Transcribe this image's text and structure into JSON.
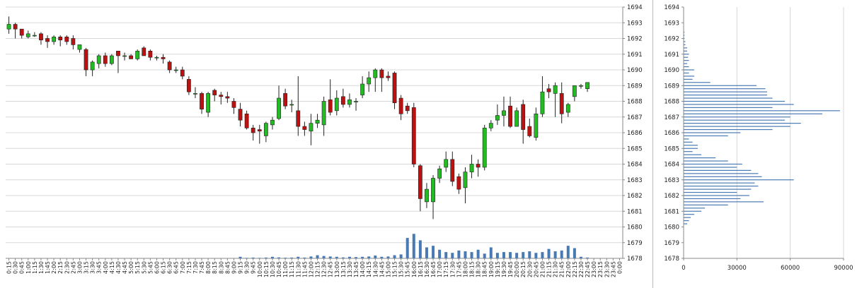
{
  "chart_data": [
    {
      "type": "candlestick",
      "y_axis": {
        "position": "right",
        "min": 1678,
        "max": 1694,
        "ticks": [
          1678,
          1679,
          1680,
          1681,
          1682,
          1683,
          1684,
          1685,
          1686,
          1687,
          1688,
          1689,
          1690,
          1691,
          1692,
          1693,
          1694
        ]
      },
      "x_tick_labels": [
        "0:15",
        "0:30",
        "0:45",
        "1:00",
        "1:15",
        "1:30",
        "1:45",
        "2:00",
        "2:15",
        "2:30",
        "2:45",
        "3:00",
        "3:15",
        "3:30",
        "3:45",
        "4:00",
        "4:15",
        "4:30",
        "4:45",
        "5:00",
        "5:15",
        "5:30",
        "5:45",
        "6:00",
        "6:15",
        "6:30",
        "6:45",
        "7:00",
        "7:15",
        "7:30",
        "7:45",
        "8:00",
        "8:15",
        "8:30",
        "8:45",
        "9:00",
        "9:15",
        "9:30",
        "9:45",
        "10:00",
        "10:15",
        "10:30",
        "10:45",
        "11:00",
        "11:15",
        "11:30",
        "11:45",
        "12:00",
        "12:15",
        "12:30",
        "12:45",
        "13:00",
        "13:15",
        "13:30",
        "13:45",
        "14:00",
        "14:15",
        "14:30",
        "14:45",
        "15:00",
        "15:15",
        "15:30",
        "15:45",
        "16:00",
        "16:15",
        "16:30",
        "16:45",
        "17:00",
        "17:15",
        "17:30",
        "17:45",
        "18:00",
        "18:15",
        "18:30",
        "18:45",
        "19:00",
        "19:15",
        "19:30",
        "19:45",
        "20:00",
        "20:15",
        "20:30",
        "20:45",
        "21:00",
        "21:15",
        "21:30",
        "21:45",
        "22:00",
        "22:15",
        "22:30",
        "22:45",
        "23:00",
        "23:15",
        "23:30",
        "23:45",
        "0:00"
      ],
      "colors": {
        "up": "#22bb22",
        "down": "#bb1111",
        "volume": "#4a7ab3",
        "grid": "#d8d8d8"
      },
      "candles": [
        {
          "t": "0:15",
          "o": 1692.6,
          "h": 1693.4,
          "l": 1692.3,
          "c": 1692.9
        },
        {
          "t": "0:30",
          "o": 1692.9,
          "h": 1693.0,
          "l": 1692.0,
          "c": 1692.6
        },
        {
          "t": "0:45",
          "o": 1692.6,
          "h": 1692.6,
          "l": 1692.0,
          "c": 1692.2
        },
        {
          "t": "1:00",
          "o": 1692.1,
          "h": 1692.5,
          "l": 1692.0,
          "c": 1692.3
        },
        {
          "t": "1:15",
          "o": 1692.2,
          "h": 1692.4,
          "l": 1692.1,
          "c": 1692.2
        },
        {
          "t": "1:30",
          "o": 1692.3,
          "h": 1692.4,
          "l": 1691.6,
          "c": 1691.9
        },
        {
          "t": "1:45",
          "o": 1692.0,
          "h": 1692.2,
          "l": 1691.4,
          "c": 1691.8
        },
        {
          "t": "2:00",
          "o": 1691.8,
          "h": 1692.2,
          "l": 1691.6,
          "c": 1692.1
        },
        {
          "t": "2:15",
          "o": 1692.1,
          "h": 1692.2,
          "l": 1691.5,
          "c": 1691.9
        },
        {
          "t": "2:30",
          "o": 1692.1,
          "h": 1692.2,
          "l": 1691.6,
          "c": 1691.8
        },
        {
          "t": "2:45",
          "o": 1692.0,
          "h": 1692.2,
          "l": 1691.3,
          "c": 1691.6
        },
        {
          "t": "3:00",
          "o": 1691.3,
          "h": 1691.5,
          "l": 1691.1,
          "c": 1691.6
        },
        {
          "t": "3:15",
          "o": 1691.3,
          "h": 1691.4,
          "l": 1689.6,
          "c": 1690.0
        },
        {
          "t": "3:30",
          "o": 1690.0,
          "h": 1690.6,
          "l": 1689.6,
          "c": 1690.5
        },
        {
          "t": "3:45",
          "o": 1690.4,
          "h": 1691.0,
          "l": 1690.1,
          "c": 1690.9
        },
        {
          "t": "4:00",
          "o": 1690.9,
          "h": 1691.1,
          "l": 1690.2,
          "c": 1690.4
        },
        {
          "t": "4:15",
          "o": 1690.4,
          "h": 1691.0,
          "l": 1690.3,
          "c": 1690.9
        },
        {
          "t": "4:30",
          "o": 1691.2,
          "h": 1691.2,
          "l": 1689.8,
          "c": 1690.9
        },
        {
          "t": "4:45",
          "o": 1690.9,
          "h": 1691.1,
          "l": 1690.6,
          "c": 1690.9
        },
        {
          "t": "5:00",
          "o": 1690.9,
          "h": 1691.0,
          "l": 1690.7,
          "c": 1690.7
        },
        {
          "t": "5:15",
          "o": 1690.7,
          "h": 1691.3,
          "l": 1690.6,
          "c": 1691.2
        },
        {
          "t": "5:30",
          "o": 1691.4,
          "h": 1691.5,
          "l": 1690.9,
          "c": 1690.9
        },
        {
          "t": "5:45",
          "o": 1691.2,
          "h": 1691.3,
          "l": 1690.6,
          "c": 1690.8
        },
        {
          "t": "6:00",
          "o": 1690.8,
          "h": 1690.9,
          "l": 1690.6,
          "c": 1690.8
        },
        {
          "t": "6:15",
          "o": 1690.8,
          "h": 1691.0,
          "l": 1690.4,
          "c": 1690.7
        },
        {
          "t": "6:30",
          "o": 1690.5,
          "h": 1690.6,
          "l": 1689.8,
          "c": 1690.0
        },
        {
          "t": "6:45",
          "o": 1690.0,
          "h": 1690.2,
          "l": 1689.8,
          "c": 1690.0
        },
        {
          "t": "7:00",
          "o": 1690.0,
          "h": 1690.2,
          "l": 1689.4,
          "c": 1689.6
        },
        {
          "t": "7:15",
          "o": 1689.4,
          "h": 1689.6,
          "l": 1688.4,
          "c": 1688.6
        },
        {
          "t": "7:30",
          "o": 1688.5,
          "h": 1688.9,
          "l": 1688.2,
          "c": 1688.5
        },
        {
          "t": "7:45",
          "o": 1688.5,
          "h": 1688.6,
          "l": 1687.2,
          "c": 1687.5
        },
        {
          "t": "8:00",
          "o": 1687.3,
          "h": 1688.6,
          "l": 1687.0,
          "c": 1688.5
        },
        {
          "t": "8:15",
          "o": 1688.7,
          "h": 1688.8,
          "l": 1688.0,
          "c": 1688.4
        },
        {
          "t": "8:30",
          "o": 1688.4,
          "h": 1688.6,
          "l": 1687.8,
          "c": 1688.3
        },
        {
          "t": "8:45",
          "o": 1688.3,
          "h": 1688.6,
          "l": 1687.9,
          "c": 1688.2
        },
        {
          "t": "9:00",
          "o": 1688.0,
          "h": 1688.2,
          "l": 1687.2,
          "c": 1687.6
        },
        {
          "t": "9:15",
          "o": 1687.5,
          "h": 1687.9,
          "l": 1686.4,
          "c": 1686.8
        },
        {
          "t": "9:30",
          "o": 1687.2,
          "h": 1687.4,
          "l": 1686.2,
          "c": 1686.3
        },
        {
          "t": "9:45",
          "o": 1686.3,
          "h": 1686.5,
          "l": 1685.5,
          "c": 1686.0
        },
        {
          "t": "10:00",
          "o": 1686.2,
          "h": 1686.5,
          "l": 1685.3,
          "c": 1686.1
        },
        {
          "t": "10:15",
          "o": 1685.8,
          "h": 1686.7,
          "l": 1685.4,
          "c": 1686.6
        },
        {
          "t": "10:30",
          "o": 1686.5,
          "h": 1687.0,
          "l": 1686.2,
          "c": 1686.8
        },
        {
          "t": "10:45",
          "o": 1686.9,
          "h": 1689.0,
          "l": 1686.8,
          "c": 1688.2
        },
        {
          "t": "11:00",
          "o": 1688.5,
          "h": 1688.8,
          "l": 1687.5,
          "c": 1687.7
        },
        {
          "t": "11:15",
          "o": 1687.8,
          "h": 1688.1,
          "l": 1687.3,
          "c": 1687.8
        },
        {
          "t": "11:30",
          "o": 1687.4,
          "h": 1689.6,
          "l": 1685.8,
          "c": 1686.4
        },
        {
          "t": "11:45",
          "o": 1686.4,
          "h": 1686.7,
          "l": 1685.8,
          "c": 1686.2
        },
        {
          "t": "12:00",
          "o": 1686.1,
          "h": 1687.2,
          "l": 1685.2,
          "c": 1686.6
        },
        {
          "t": "12:15",
          "o": 1686.6,
          "h": 1687.2,
          "l": 1686.3,
          "c": 1686.8
        },
        {
          "t": "12:30",
          "o": 1686.5,
          "h": 1688.3,
          "l": 1685.8,
          "c": 1688.0
        },
        {
          "t": "12:45",
          "o": 1688.1,
          "h": 1689.4,
          "l": 1687.1,
          "c": 1687.3
        },
        {
          "t": "13:00",
          "o": 1687.4,
          "h": 1688.7,
          "l": 1687.1,
          "c": 1688.2
        },
        {
          "t": "13:15",
          "o": 1688.3,
          "h": 1688.8,
          "l": 1687.6,
          "c": 1687.8
        },
        {
          "t": "13:30",
          "o": 1687.8,
          "h": 1688.5,
          "l": 1687.6,
          "c": 1688.1
        },
        {
          "t": "13:45",
          "o": 1688.0,
          "h": 1688.2,
          "l": 1687.4,
          "c": 1688.0
        },
        {
          "t": "14:00",
          "o": 1688.4,
          "h": 1689.6,
          "l": 1688.2,
          "c": 1689.1
        },
        {
          "t": "14:15",
          "o": 1689.1,
          "h": 1689.9,
          "l": 1688.6,
          "c": 1689.5
        },
        {
          "t": "14:30",
          "o": 1689.5,
          "h": 1690.1,
          "l": 1688.6,
          "c": 1690.0
        },
        {
          "t": "14:45",
          "o": 1690.0,
          "h": 1690.1,
          "l": 1688.6,
          "c": 1689.5
        },
        {
          "t": "15:00",
          "o": 1689.6,
          "h": 1689.9,
          "l": 1689.3,
          "c": 1689.5
        },
        {
          "t": "15:15",
          "o": 1689.8,
          "h": 1689.9,
          "l": 1687.5,
          "c": 1687.9
        },
        {
          "t": "15:30",
          "o": 1688.2,
          "h": 1688.4,
          "l": 1686.8,
          "c": 1687.2
        },
        {
          "t": "15:45",
          "o": 1687.7,
          "h": 1687.9,
          "l": 1687.2,
          "c": 1687.4
        },
        {
          "t": "16:00",
          "o": 1687.6,
          "h": 1687.9,
          "l": 1683.8,
          "c": 1684.0
        },
        {
          "t": "16:15",
          "o": 1683.9,
          "h": 1684.0,
          "l": 1681.0,
          "c": 1681.8
        },
        {
          "t": "16:30",
          "o": 1681.6,
          "h": 1682.8,
          "l": 1681.2,
          "c": 1682.4
        },
        {
          "t": "16:45",
          "o": 1681.6,
          "h": 1683.3,
          "l": 1680.5,
          "c": 1683.1
        },
        {
          "t": "17:00",
          "o": 1683.1,
          "h": 1683.9,
          "l": 1682.8,
          "c": 1683.7
        },
        {
          "t": "17:15",
          "o": 1683.8,
          "h": 1684.8,
          "l": 1683.5,
          "c": 1684.3
        },
        {
          "t": "17:30",
          "o": 1684.3,
          "h": 1684.8,
          "l": 1682.6,
          "c": 1682.9
        },
        {
          "t": "17:45",
          "o": 1683.2,
          "h": 1683.4,
          "l": 1682.1,
          "c": 1682.4
        },
        {
          "t": "18:00",
          "o": 1682.5,
          "h": 1683.8,
          "l": 1681.5,
          "c": 1683.5
        },
        {
          "t": "18:15",
          "o": 1683.5,
          "h": 1684.6,
          "l": 1683.1,
          "c": 1684.0
        },
        {
          "t": "18:30",
          "o": 1684.0,
          "h": 1684.3,
          "l": 1683.2,
          "c": 1683.8
        },
        {
          "t": "18:45",
          "o": 1683.8,
          "h": 1686.5,
          "l": 1683.6,
          "c": 1686.3
        },
        {
          "t": "19:00",
          "o": 1686.3,
          "h": 1686.8,
          "l": 1686.1,
          "c": 1686.6
        },
        {
          "t": "19:15",
          "o": 1686.8,
          "h": 1687.8,
          "l": 1686.5,
          "c": 1687.1
        },
        {
          "t": "19:30",
          "o": 1687.1,
          "h": 1688.3,
          "l": 1686.4,
          "c": 1687.4
        },
        {
          "t": "19:45",
          "o": 1687.7,
          "h": 1688.3,
          "l": 1686.3,
          "c": 1686.4
        },
        {
          "t": "20:00",
          "o": 1686.4,
          "h": 1687.6,
          "l": 1686.4,
          "c": 1687.4
        },
        {
          "t": "20:15",
          "o": 1687.8,
          "h": 1688.1,
          "l": 1685.3,
          "c": 1686.2
        },
        {
          "t": "20:30",
          "o": 1686.4,
          "h": 1686.9,
          "l": 1685.7,
          "c": 1685.8
        },
        {
          "t": "20:45",
          "o": 1685.7,
          "h": 1687.6,
          "l": 1685.5,
          "c": 1687.2
        },
        {
          "t": "21:00",
          "o": 1687.2,
          "h": 1689.6,
          "l": 1687.0,
          "c": 1688.6
        },
        {
          "t": "21:15",
          "o": 1688.8,
          "h": 1689.1,
          "l": 1688.2,
          "c": 1688.6
        },
        {
          "t": "21:30",
          "o": 1688.5,
          "h": 1689.2,
          "l": 1687.0,
          "c": 1689.0
        },
        {
          "t": "21:45",
          "o": 1688.5,
          "h": 1689.2,
          "l": 1686.6,
          "c": 1687.2
        },
        {
          "t": "22:00",
          "o": 1687.3,
          "h": 1687.9,
          "l": 1687.0,
          "c": 1687.8
        },
        {
          "t": "22:15",
          "o": 1688.3,
          "h": 1689.0,
          "l": 1688.0,
          "c": 1689.0
        },
        {
          "t": "22:30",
          "o": 1689.0,
          "h": 1689.1,
          "l": 1688.8,
          "c": 1689.0
        },
        {
          "t": "22:45",
          "o": 1688.8,
          "h": 1689.1,
          "l": 1688.6,
          "c": 1689.2
        }
      ],
      "volumes": [
        0,
        0,
        0,
        0,
        0,
        0,
        0,
        0,
        0,
        0,
        0,
        0,
        0,
        0,
        0,
        0,
        0,
        0,
        0,
        0,
        0,
        0,
        0,
        0,
        0,
        0,
        0,
        0,
        0,
        0,
        0,
        0,
        0,
        0,
        0,
        0,
        0.1,
        0.03,
        0.05,
        0.03,
        0.05,
        0.1,
        0.06,
        0.04,
        0.05,
        0.1,
        0.05,
        0.12,
        0.2,
        0.15,
        0.12,
        0.1,
        0.06,
        0.1,
        0.08,
        0.1,
        0.12,
        0.18,
        0.1,
        0.12,
        0.2,
        0.25,
        1.3,
        1.56,
        1.15,
        0.7,
        0.8,
        0.55,
        0.4,
        0.35,
        0.5,
        0.45,
        0.4,
        0.55,
        0.3,
        0.7,
        0.35,
        0.4,
        0.4,
        0.35,
        0.4,
        0.45,
        0.35,
        0.4,
        0.6,
        0.45,
        0.5,
        0.8,
        0.65,
        0.1,
        0.05,
        0.0,
        0.0,
        0.0
      ]
    },
    {
      "type": "bar",
      "orientation": "horizontal",
      "y_axis": {
        "min": 1678,
        "max": 1694,
        "ticks": [
          1678,
          1679,
          1680,
          1681,
          1682,
          1683,
          1684,
          1685,
          1686,
          1687,
          1688,
          1689,
          1690,
          1691,
          1692,
          1693,
          1694
        ]
      },
      "x_axis": {
        "min": 0,
        "max": 90000,
        "ticks": [
          0,
          30000,
          60000,
          90000
        ]
      },
      "color": "#4a7ab3",
      "levels": [
        1680.2,
        1680.4,
        1680.6,
        1680.8,
        1681.0,
        1681.2,
        1681.4,
        1681.6,
        1681.8,
        1682.0,
        1682.2,
        1682.4,
        1682.6,
        1682.8,
        1683.0,
        1683.2,
        1683.4,
        1683.6,
        1683.8,
        1684.0,
        1684.2,
        1684.4,
        1684.6,
        1684.8,
        1685.0,
        1685.2,
        1685.4,
        1685.6,
        1685.8,
        1686.0,
        1686.2,
        1686.4,
        1686.6,
        1686.8,
        1687.0,
        1687.2,
        1687.4,
        1687.6,
        1687.8,
        1688.0,
        1688.2,
        1688.4,
        1688.6,
        1688.8,
        1689.0,
        1689.2,
        1689.4,
        1689.6,
        1689.8,
        1690.0,
        1690.2,
        1690.4,
        1690.6,
        1690.8,
        1691.0,
        1691.2,
        1691.4,
        1691.6,
        1691.8,
        1692.0,
        1692.2,
        1692.4
      ],
      "values": [
        2000,
        3000,
        4000,
        6000,
        10000,
        12000,
        25000,
        45000,
        32000,
        37000,
        30000,
        38000,
        42000,
        40000,
        62000,
        44000,
        42000,
        38000,
        30000,
        33000,
        25000,
        18000,
        10000,
        5000,
        8000,
        8000,
        5000,
        3000,
        25000,
        32000,
        50000,
        60000,
        66000,
        57000,
        60000,
        78000,
        88000,
        50000,
        62000,
        57000,
        50000,
        47000,
        47000,
        46000,
        41000,
        15000,
        5000,
        6000,
        3000,
        6000,
        3000,
        2000,
        3000,
        2500,
        3000,
        2000,
        2000,
        1000,
        1000,
        500,
        500,
        500
      ]
    }
  ]
}
